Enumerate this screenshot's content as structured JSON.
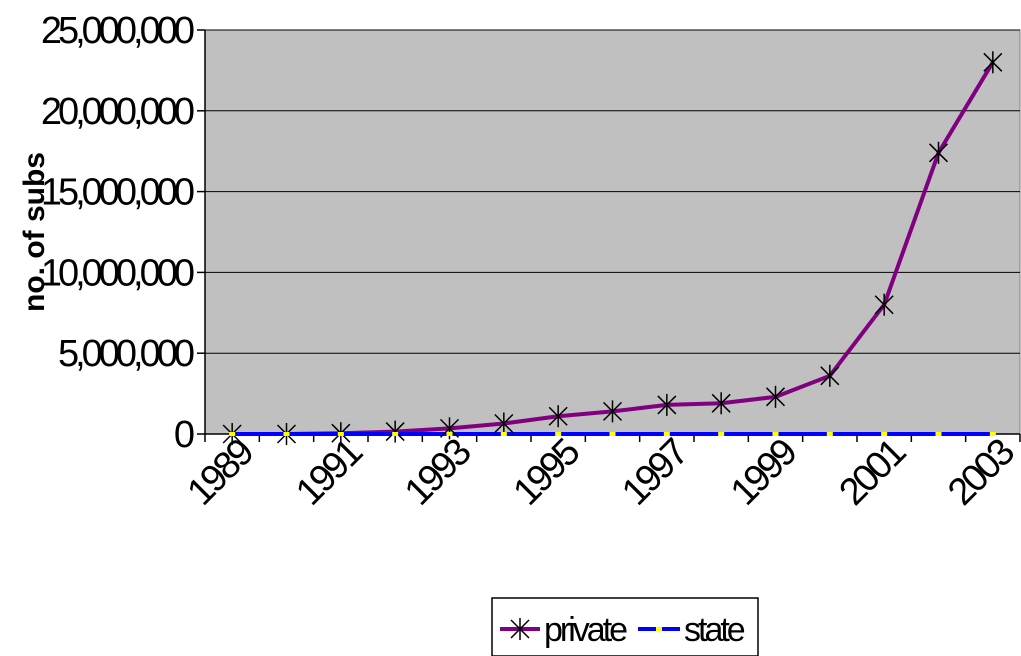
{
  "chart_data": {
    "type": "line",
    "title": "",
    "xlabel": "",
    "ylabel": "no. of subs",
    "ylim": [
      0,
      25000000
    ],
    "yticks": [
      0,
      5000000,
      10000000,
      15000000,
      20000000,
      25000000
    ],
    "ytick_labels": [
      "0",
      "5,000,000",
      "10,000,000",
      "15,000,000",
      "20,000,000",
      "25,000,000"
    ],
    "x": [
      1989,
      1990,
      1991,
      1992,
      1993,
      1994,
      1995,
      1996,
      1997,
      1998,
      1999,
      2000,
      2001,
      2002,
      2003
    ],
    "xtick_labels": [
      "1989",
      "1991",
      "1993",
      "1995",
      "1997",
      "1999",
      "2001",
      "2003"
    ],
    "grid": true,
    "plot_background": "#c0c0c0",
    "legend_position": "bottom",
    "series": [
      {
        "name": "private",
        "color": "#800080",
        "marker": "asterisk",
        "values": [
          0,
          0,
          50000,
          150000,
          350000,
          650000,
          1100000,
          1400000,
          1800000,
          1900000,
          2300000,
          3600000,
          8000000,
          17400000,
          23000000
        ]
      },
      {
        "name": "state",
        "color": "#0000ff",
        "marker_color": "#ffff00",
        "marker": "dash",
        "values": [
          0,
          0,
          0,
          0,
          0,
          0,
          0,
          0,
          0,
          0,
          0,
          0,
          0,
          0,
          0
        ]
      }
    ]
  }
}
